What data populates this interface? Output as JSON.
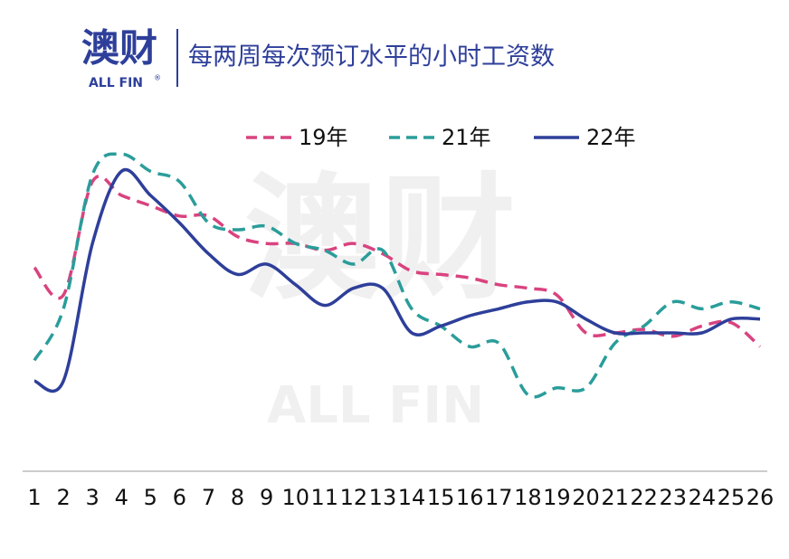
{
  "logo": {
    "name": "澳财",
    "sub": "ALL FIN",
    "mark": "®"
  },
  "watermark": {
    "name": "澳财",
    "sub": "ALL FIN"
  },
  "chart_data": {
    "type": "line",
    "title": "每两周每次预订水平的小时工资数",
    "categories": [
      "1",
      "2",
      "3",
      "4",
      "5",
      "6",
      "7",
      "8",
      "9",
      "10",
      "11",
      "12",
      "13",
      "14",
      "15",
      "16",
      "17",
      "18",
      "19",
      "20",
      "21",
      "22",
      "23",
      "24",
      "25",
      "26"
    ],
    "ylim": [
      0,
      100
    ],
    "series": [
      {
        "name": "19年",
        "color": "#d9437f",
        "dash": true,
        "values": [
          59,
          51,
          84,
          80,
          77,
          74,
          74,
          68,
          66,
          66,
          64,
          66,
          63,
          58,
          57,
          56,
          54,
          53,
          51,
          40,
          40,
          41,
          39,
          42,
          43,
          36
        ]
      },
      {
        "name": "21年",
        "color": "#2a9d9a",
        "dash": true,
        "values": [
          32,
          47,
          86,
          92,
          87,
          84,
          72,
          70,
          71,
          66,
          64,
          60,
          64,
          47,
          42,
          36,
          37,
          22,
          24,
          24,
          37,
          42,
          49,
          47,
          49,
          47
        ]
      },
      {
        "name": "22年",
        "color": "#2e3f9a",
        "dash": false,
        "values": [
          26,
          26,
          66,
          87,
          80,
          72,
          63,
          57,
          60,
          54,
          48,
          53,
          53,
          40,
          42,
          45,
          47,
          49,
          49,
          44,
          40,
          40,
          40,
          40,
          44,
          44
        ]
      }
    ]
  }
}
